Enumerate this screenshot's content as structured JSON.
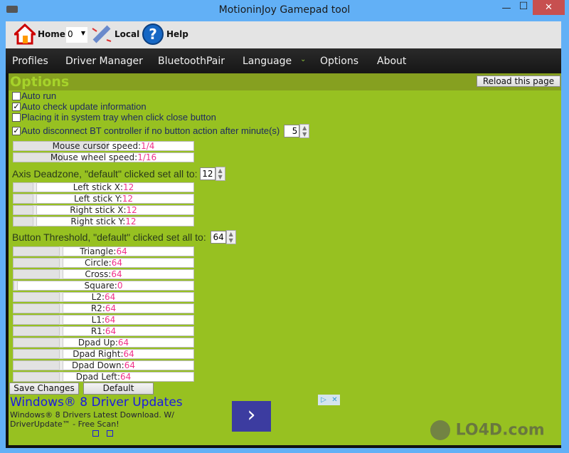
{
  "window": {
    "title": "MotioninJoy Gamepad tool",
    "minimize": "—",
    "maximize": "☐",
    "close": "✕"
  },
  "toolbar": {
    "home": "Home",
    "controller_select": "0",
    "local": "Local",
    "help": "Help"
  },
  "nav": [
    "Profiles",
    "Driver Manager",
    "BluetoothPair",
    "Language",
    "Options",
    "About"
  ],
  "page": {
    "title": "Options",
    "reload": "Reload this page"
  },
  "checkboxes": [
    {
      "label": "Auto run",
      "checked": false
    },
    {
      "label": "Auto check update information",
      "checked": true
    },
    {
      "label": "Placing it in system tray when click close button",
      "checked": false
    },
    {
      "label": "Auto disconnect BT controller if no button action after minute(s)",
      "checked": true
    }
  ],
  "disconnect_minutes": "5",
  "mouse": [
    {
      "label": "Mouse cursor speed:",
      "value": "1/4",
      "level": 0.52
    },
    {
      "label": "Mouse wheel speed:",
      "value": "1/16",
      "level": 0.26
    }
  ],
  "deadzone": {
    "label": "Axis Deadzone, \"default\" clicked set all to:",
    "value": "12",
    "sliders": [
      {
        "label": "Left stick X:",
        "value": "12",
        "level": 0.11
      },
      {
        "label": "Left stick Y:",
        "value": "12",
        "level": 0.11
      },
      {
        "label": "Right stick X:",
        "value": "12",
        "level": 0.11
      },
      {
        "label": "Right stick Y:",
        "value": "12",
        "level": 0.11
      }
    ]
  },
  "threshold": {
    "label": "Button Threshold, \"default\" clicked set all to:",
    "value": "64",
    "sliders": [
      {
        "label": "Triangle:",
        "value": "64",
        "level": 0.26
      },
      {
        "label": "Circle:",
        "value": "64",
        "level": 0.26
      },
      {
        "label": "Cross:",
        "value": "64",
        "level": 0.26
      },
      {
        "label": "Square:",
        "value": "0",
        "level": 0.0
      },
      {
        "label": "L2:",
        "value": "64",
        "level": 0.26
      },
      {
        "label": "R2:",
        "value": "64",
        "level": 0.26
      },
      {
        "label": "L1:",
        "value": "64",
        "level": 0.26
      },
      {
        "label": "R1:",
        "value": "64",
        "level": 0.26
      },
      {
        "label": "Dpad Up:",
        "value": "64",
        "level": 0.26
      },
      {
        "label": "Dpad Right:",
        "value": "64",
        "level": 0.26
      },
      {
        "label": "Dpad Down:",
        "value": "64",
        "level": 0.26
      },
      {
        "label": "Dpad Left:",
        "value": "64",
        "level": 0.26
      }
    ]
  },
  "buttons": {
    "save": "Save Changes",
    "default": "Default"
  },
  "ad": {
    "title": "Windows® 8 Driver Updates",
    "text1": "Windows® 8 Drivers Latest Download. W/",
    "text2": "DriverUpdate™ - Free Scan!",
    "arrow": "›",
    "adchoices": "▷",
    "close": "✕"
  },
  "watermark": "LO4D.com"
}
